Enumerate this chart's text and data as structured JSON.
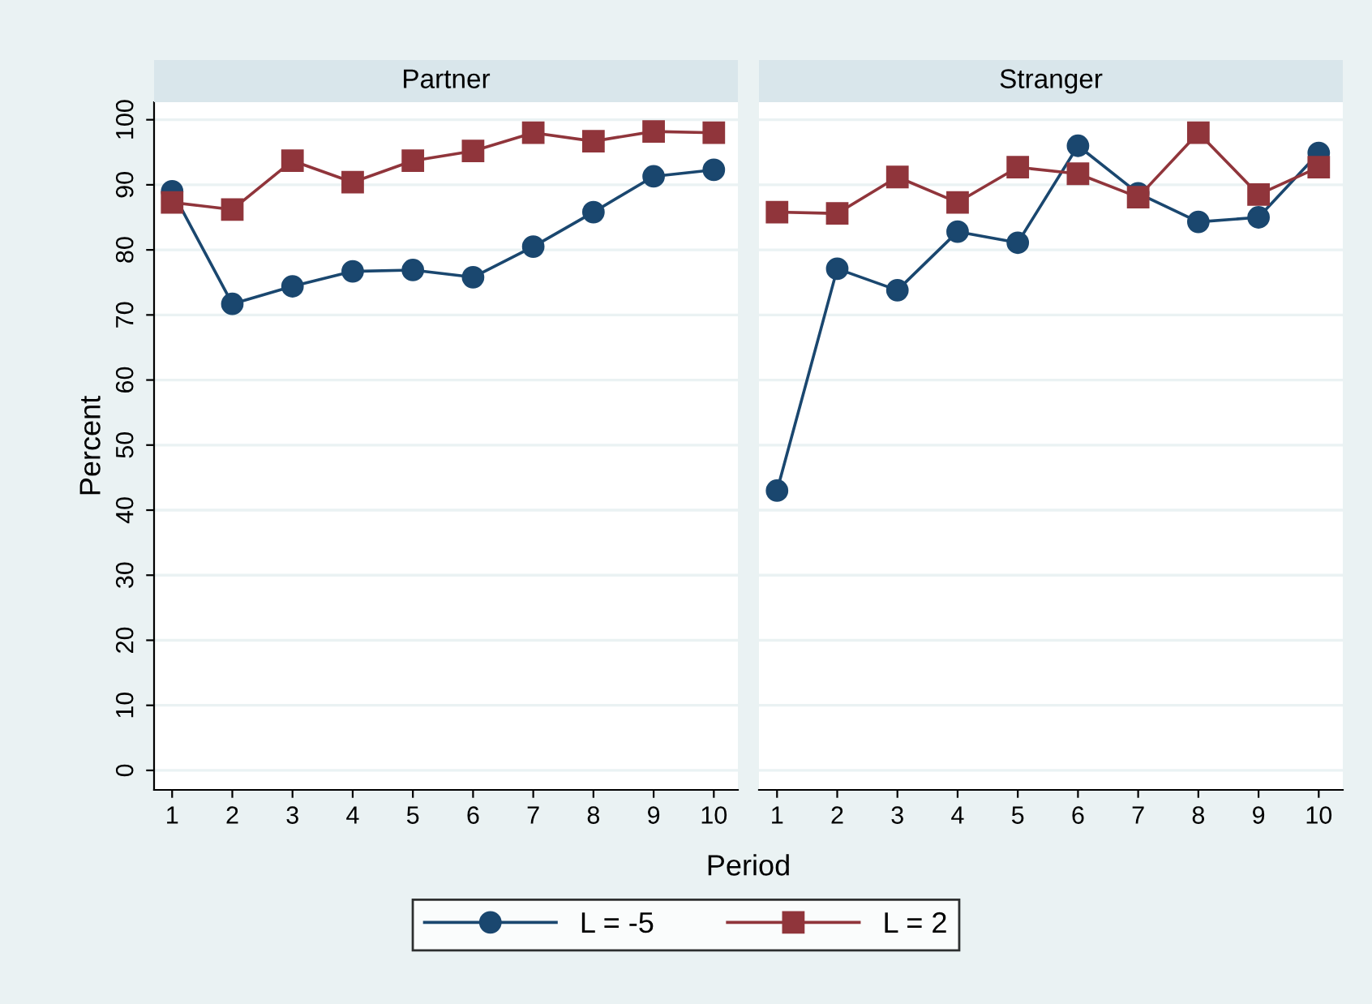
{
  "chart_data": [
    {
      "type": "line",
      "title": "Partner",
      "xlabel": "Period",
      "ylabel": "Percent",
      "x": [
        1,
        2,
        3,
        4,
        5,
        6,
        7,
        8,
        9,
        10
      ],
      "series": [
        {
          "name": "L = -5",
          "color": "#1a476f",
          "marker": "circle",
          "values": [
            89,
            71.7,
            74.4,
            76.7,
            76.9,
            75.8,
            80.5,
            85.8,
            91.3,
            92.3
          ]
        },
        {
          "name": "L = 2",
          "color": "#90353b",
          "marker": "square",
          "values": [
            87.3,
            86.2,
            93.7,
            90.4,
            93.7,
            95.2,
            98,
            96.7,
            98.2,
            98
          ]
        }
      ],
      "xlim": [
        0.7,
        10.4
      ],
      "xticks": [
        1,
        2,
        3,
        4,
        5,
        6,
        7,
        8,
        9,
        10
      ],
      "ylim": [
        -3,
        102.7
      ],
      "yticks": [
        0,
        10,
        20,
        30,
        40,
        50,
        60,
        70,
        80,
        90,
        100
      ],
      "grid": "y",
      "legend": "bottom"
    },
    {
      "type": "line",
      "title": "Stranger",
      "x": [
        1,
        2,
        3,
        4,
        5,
        6,
        7,
        8,
        9,
        10
      ],
      "series": [
        {
          "color": "#1a476f",
          "marker": "circle",
          "values": [
            43,
            77.1,
            73.8,
            82.8,
            81.1,
            96,
            88.7,
            84.3,
            85,
            94.9
          ]
        },
        {
          "color": "#90353b",
          "marker": "square",
          "values": [
            85.8,
            85.6,
            91.2,
            87.3,
            92.7,
            91.7,
            88.1,
            98,
            88.5,
            92.7
          ]
        }
      ],
      "xlim": [
        0.7,
        10.4
      ],
      "xticks": [
        1,
        2,
        3,
        4,
        5,
        6,
        7,
        8,
        9,
        10
      ],
      "ylim": [
        -3,
        102.7
      ],
      "yticks": [
        0,
        10,
        20,
        30,
        40,
        50,
        60,
        70,
        80,
        90,
        100
      ],
      "grid": "y",
      "tick_labels": "x"
    }
  ]
}
